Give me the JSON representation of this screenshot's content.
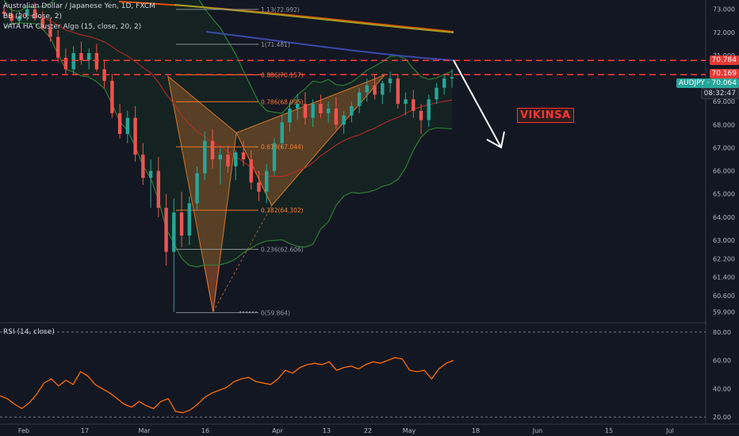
{
  "legend": {
    "symbol_line": "Australian Dollar / Japanese Yen, 1D, FXCM",
    "bb_line": "BB (20, close, 2)",
    "vata_line": "VATA HA Cluster Algo (15, close, 20, 2)",
    "rsi_line": "RSI (14, close)"
  },
  "annotation": {
    "label": "VIKINSA"
  },
  "price_tags": {
    "upper": "70.784",
    "lower": "70.169",
    "symbol": "AUDJPY · 70.064",
    "countdown": "08:32:47"
  },
  "colors": {
    "background": "#131722",
    "up": "#26a69a",
    "down": "#ef5350",
    "pattern": "#ff7a2e",
    "bb": "#2e7d32",
    "dashed": "#ff3b3b",
    "rsi": "#ff6d00"
  },
  "chart_data": [
    {
      "type": "candlestick",
      "title": "Australian Dollar / Japanese Yen, 1D, FXCM",
      "ylim": [
        59.5,
        73.4
      ],
      "price_axis_ticks": [
        "73.000",
        "72.000",
        "71.000",
        "70.000",
        "69.000",
        "68.000",
        "67.000",
        "66.000",
        "65.000",
        "64.000",
        "63.000",
        "62.200",
        "61.400",
        "60.600",
        "59.900"
      ],
      "x_ticks": [
        "Feb",
        "17",
        "Mar",
        "16",
        "Apr",
        "13",
        "22",
        "May",
        "18",
        "Jun",
        "15",
        "Jul"
      ],
      "horizontal_levels": [
        70.784,
        70.169
      ],
      "fib_levels": [
        {
          "ratio": "1.13",
          "value": "72.992",
          "label": "1.13(72.992)"
        },
        {
          "ratio": "1",
          "value": "71.481",
          "label": "1(71.481)"
        },
        {
          "ratio": "0.886",
          "value": "70.157",
          "label": "0.886(70.157)"
        },
        {
          "ratio": "0.786",
          "value": "68.995",
          "label": "0.786(68.995)"
        },
        {
          "ratio": "0.618",
          "value": "67.044",
          "label": "0.618(67.044)"
        },
        {
          "ratio": "0.382",
          "value": "64.302",
          "label": "0.382(64.302)"
        },
        {
          "ratio": "0.236",
          "value": "62.606",
          "label": "0.236(62.606)"
        },
        {
          "ratio": "0",
          "value": "59.864",
          "label": "0(59.864)"
        }
      ],
      "harmonic_pattern": {
        "points": [
          [
            0.238,
            70.1
          ],
          [
            0.302,
            59.9
          ],
          [
            0.335,
            67.65
          ],
          [
            0.385,
            64.5
          ],
          [
            0.545,
            70.15
          ]
        ]
      },
      "candles": [
        [
          72.9,
          73.2,
          72.6,
          72.8
        ],
        [
          72.8,
          73.1,
          72.3,
          72.5
        ],
        [
          72.5,
          72.9,
          72.2,
          72.7
        ],
        [
          72.7,
          73.2,
          72.5,
          73.0
        ],
        [
          73.0,
          73.3,
          72.5,
          72.6
        ],
        [
          72.6,
          72.9,
          72.1,
          72.2
        ],
        [
          72.2,
          72.6,
          71.6,
          71.8
        ],
        [
          71.8,
          72.1,
          70.7,
          70.9
        ],
        [
          70.9,
          71.3,
          70.2,
          70.4
        ],
        [
          70.4,
          71.4,
          70.2,
          71.1
        ],
        [
          71.1,
          71.6,
          70.6,
          70.8
        ],
        [
          70.8,
          71.3,
          70.4,
          71.1
        ],
        [
          71.1,
          71.5,
          70.3,
          70.4
        ],
        [
          70.4,
          70.8,
          69.6,
          69.9
        ],
        [
          69.9,
          70.2,
          68.3,
          68.5
        ],
        [
          68.5,
          68.9,
          67.4,
          67.6
        ],
        [
          67.6,
          68.6,
          67.2,
          68.3
        ],
        [
          68.3,
          68.8,
          66.4,
          66.7
        ],
        [
          66.7,
          67.2,
          65.4,
          65.7
        ],
        [
          65.7,
          66.5,
          64.4,
          66.0
        ],
        [
          66.0,
          66.6,
          64.0,
          64.4
        ],
        [
          64.4,
          65.0,
          61.9,
          62.5
        ],
        [
          62.5,
          64.8,
          59.9,
          64.2
        ],
        [
          64.2,
          65.1,
          62.7,
          63.2
        ],
        [
          63.2,
          64.9,
          62.8,
          64.6
        ],
        [
          64.6,
          66.2,
          64.3,
          65.9
        ],
        [
          65.9,
          67.7,
          65.6,
          67.3
        ],
        [
          67.3,
          67.8,
          66.1,
          66.5
        ],
        [
          66.5,
          67.0,
          65.4,
          66.7
        ],
        [
          66.7,
          67.1,
          65.9,
          66.2
        ],
        [
          66.2,
          66.9,
          65.6,
          66.8
        ],
        [
          66.8,
          67.3,
          66.2,
          66.5
        ],
        [
          66.5,
          66.9,
          65.2,
          65.5
        ],
        [
          65.5,
          66.0,
          64.7,
          65.1
        ],
        [
          65.1,
          66.3,
          64.6,
          66.0
        ],
        [
          66.0,
          67.4,
          65.8,
          67.2
        ],
        [
          67.2,
          68.4,
          67.0,
          68.1
        ],
        [
          68.1,
          69.0,
          67.7,
          68.7
        ],
        [
          68.7,
          69.3,
          68.2,
          68.9
        ],
        [
          68.9,
          69.4,
          68.0,
          68.3
        ],
        [
          68.3,
          69.1,
          67.9,
          68.9
        ],
        [
          68.9,
          69.3,
          68.3,
          68.5
        ],
        [
          68.5,
          69.0,
          68.1,
          68.7
        ],
        [
          68.7,
          69.2,
          67.8,
          68.0
        ],
        [
          68.0,
          68.6,
          67.6,
          68.4
        ],
        [
          68.4,
          69.0,
          68.1,
          68.8
        ],
        [
          68.8,
          69.6,
          68.5,
          69.4
        ],
        [
          69.4,
          70.0,
          69.0,
          69.7
        ],
        [
          69.7,
          70.2,
          69.1,
          69.3
        ],
        [
          69.3,
          69.9,
          68.9,
          69.8
        ],
        [
          69.8,
          70.3,
          69.4,
          70.0
        ],
        [
          70.0,
          70.2,
          68.7,
          68.9
        ],
        [
          68.9,
          69.4,
          68.4,
          69.1
        ],
        [
          69.1,
          69.5,
          68.3,
          68.6
        ],
        [
          68.6,
          68.9,
          67.6,
          68.2
        ],
        [
          68.2,
          69.3,
          67.9,
          69.1
        ],
        [
          69.1,
          69.8,
          68.9,
          69.6
        ],
        [
          69.6,
          70.2,
          69.3,
          70.0
        ],
        [
          70.0,
          70.4,
          69.6,
          70.06
        ]
      ]
    },
    {
      "type": "line",
      "title": "RSI (14, close)",
      "ylim": [
        15,
        85
      ],
      "y_ticks": [
        "80.00",
        "60.00",
        "40.00",
        "20.00"
      ],
      "reference_lines": [
        80,
        20
      ],
      "series": [
        {
          "values": [
            35,
            33,
            29,
            26,
            30,
            36,
            44,
            47,
            42,
            46,
            43,
            52,
            49,
            43,
            40,
            37,
            33,
            29,
            27,
            31,
            28,
            26,
            31,
            33,
            24,
            23,
            25,
            29,
            34,
            37,
            39,
            41,
            45,
            47,
            48,
            45,
            44,
            43,
            47,
            53,
            51,
            55,
            57,
            58,
            57,
            59,
            53,
            55,
            56,
            54,
            57,
            59,
            58,
            60,
            62,
            61,
            53,
            52,
            53,
            47,
            54,
            58,
            60
          ]
        }
      ]
    }
  ]
}
